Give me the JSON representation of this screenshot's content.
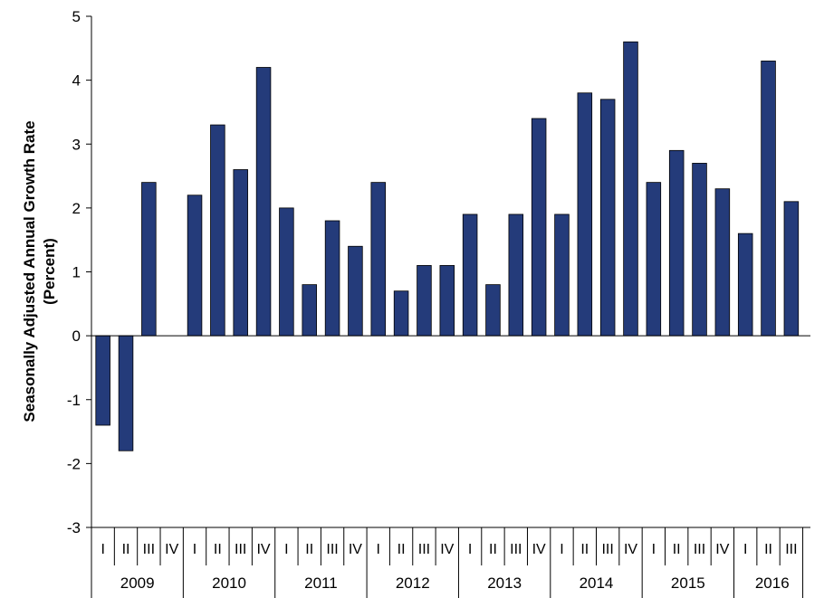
{
  "chart_data": {
    "type": "bar",
    "ylabel_line1": "Seasonally Adjusted Annual Growth Rate",
    "ylabel_line2": "(Percent)",
    "ylim": [
      -3,
      5
    ],
    "yticks": [
      -3,
      -2,
      -1,
      0,
      1,
      2,
      3,
      4,
      5
    ],
    "bar_color": "#243B7A",
    "grid": false,
    "years": [
      "2009",
      "2010",
      "2011",
      "2012",
      "2013",
      "2014",
      "2015",
      "2016"
    ],
    "quarters": [
      "I",
      "II",
      "III",
      "IV"
    ],
    "categories": [
      {
        "year": "2009",
        "quarter": "I",
        "value": -1.4
      },
      {
        "year": "2009",
        "quarter": "II",
        "value": -1.8
      },
      {
        "year": "2009",
        "quarter": "III",
        "value": 2.4
      },
      {
        "year": "2009",
        "quarter": "IV",
        "value": null
      },
      {
        "year": "2010",
        "quarter": "I",
        "value": 2.2
      },
      {
        "year": "2010",
        "quarter": "II",
        "value": 3.3
      },
      {
        "year": "2010",
        "quarter": "III",
        "value": 2.6
      },
      {
        "year": "2010",
        "quarter": "IV",
        "value": 4.2
      },
      {
        "year": "2011",
        "quarter": "I",
        "value": 2.0
      },
      {
        "year": "2011",
        "quarter": "II",
        "value": 0.8
      },
      {
        "year": "2011",
        "quarter": "III",
        "value": 1.8
      },
      {
        "year": "2011",
        "quarter": "IV",
        "value": 1.4
      },
      {
        "year": "2012",
        "quarter": "I",
        "value": 2.4
      },
      {
        "year": "2012",
        "quarter": "II",
        "value": 0.7
      },
      {
        "year": "2012",
        "quarter": "III",
        "value": 1.1
      },
      {
        "year": "2012",
        "quarter": "IV",
        "value": 1.1
      },
      {
        "year": "2013",
        "quarter": "I",
        "value": 1.9
      },
      {
        "year": "2013",
        "quarter": "II",
        "value": 0.8
      },
      {
        "year": "2013",
        "quarter": "III",
        "value": 1.9
      },
      {
        "year": "2013",
        "quarter": "IV",
        "value": 3.4
      },
      {
        "year": "2014",
        "quarter": "I",
        "value": 1.9
      },
      {
        "year": "2014",
        "quarter": "II",
        "value": 3.8
      },
      {
        "year": "2014",
        "quarter": "III",
        "value": 3.7
      },
      {
        "year": "2014",
        "quarter": "IV",
        "value": 4.6
      },
      {
        "year": "2015",
        "quarter": "I",
        "value": 2.4
      },
      {
        "year": "2015",
        "quarter": "II",
        "value": 2.9
      },
      {
        "year": "2015",
        "quarter": "III",
        "value": 2.7
      },
      {
        "year": "2015",
        "quarter": "IV",
        "value": 2.3
      },
      {
        "year": "2016",
        "quarter": "I",
        "value": 1.6
      },
      {
        "year": "2016",
        "quarter": "II",
        "value": 4.3
      },
      {
        "year": "2016",
        "quarter": "III",
        "value": 2.1
      }
    ]
  }
}
